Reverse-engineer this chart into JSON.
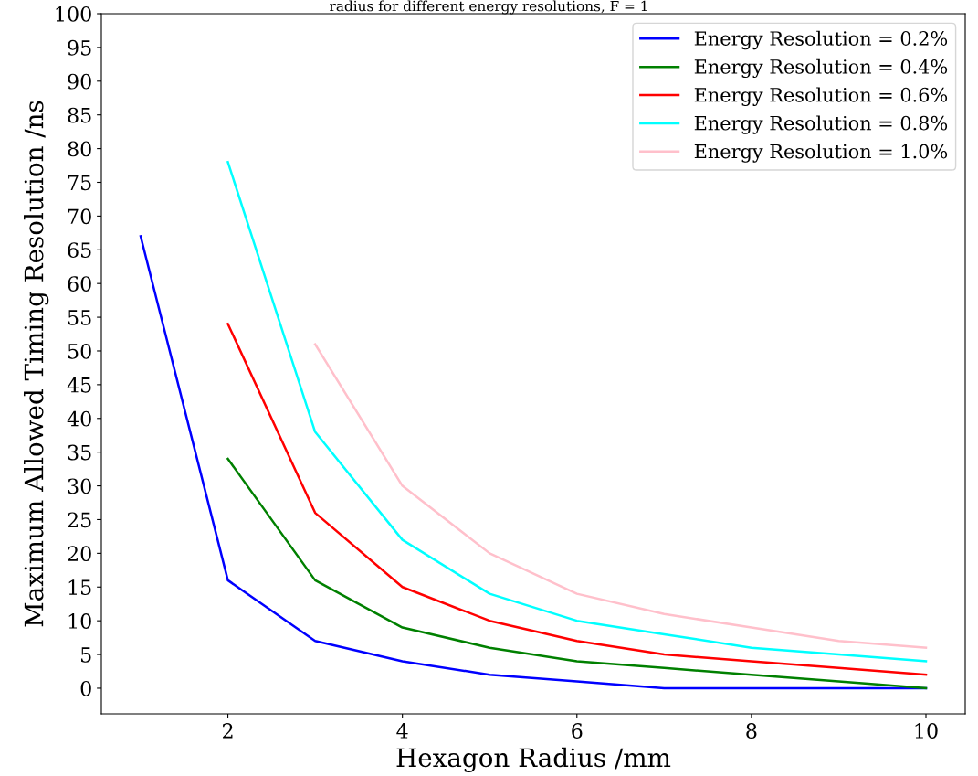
{
  "chart_data": {
    "type": "line",
    "title": "radius for different energy resolutions, F = 1",
    "xlabel": "Hexagon Radius /mm",
    "ylabel": "Maximum Allowed Timing Resolution /ns",
    "series": [
      {
        "name": "Energy Resolution = 0.2%",
        "color": "#0000ff",
        "x": [
          1,
          2,
          3,
          4,
          5,
          6,
          7,
          8,
          9,
          10
        ],
        "values": [
          67,
          16,
          7,
          4,
          2,
          1,
          0,
          0,
          0,
          0
        ]
      },
      {
        "name": "Energy Resolution = 0.4%",
        "color": "#008000",
        "x": [
          2,
          3,
          4,
          5,
          6,
          7,
          8,
          9,
          10
        ],
        "values": [
          34,
          16,
          9,
          6,
          4,
          3,
          2,
          1,
          0
        ]
      },
      {
        "name": "Energy Resolution = 0.6%",
        "color": "#ff0000",
        "x": [
          2,
          3,
          4,
          5,
          6,
          7,
          8,
          9,
          10
        ],
        "values": [
          54,
          26,
          15,
          10,
          7,
          5,
          4,
          3,
          2
        ]
      },
      {
        "name": "Energy Resolution = 0.8%",
        "color": "#00ffff",
        "x": [
          2,
          3,
          4,
          5,
          6,
          7,
          8,
          9,
          10
        ],
        "values": [
          78,
          38,
          22,
          14,
          10,
          8,
          6,
          5,
          4
        ]
      },
      {
        "name": "Energy Resolution = 1.0%",
        "color": "#ffc0cb",
        "x": [
          3,
          4,
          5,
          6,
          7,
          8,
          9,
          10
        ],
        "values": [
          51,
          30,
          20,
          14,
          11,
          9,
          7,
          6
        ]
      }
    ],
    "xlim": [
      0.55,
      10.45
    ],
    "xticks": [
      2,
      4,
      6,
      8,
      10
    ],
    "ylim": [
      -3.8,
      100
    ],
    "yticks": [
      0,
      5,
      10,
      15,
      20,
      25,
      30,
      35,
      40,
      45,
      50,
      55,
      60,
      65,
      70,
      75,
      80,
      85,
      90,
      95,
      100
    ],
    "grid": false,
    "legend": "top right",
    "marker": "none",
    "line_style": "solid"
  }
}
